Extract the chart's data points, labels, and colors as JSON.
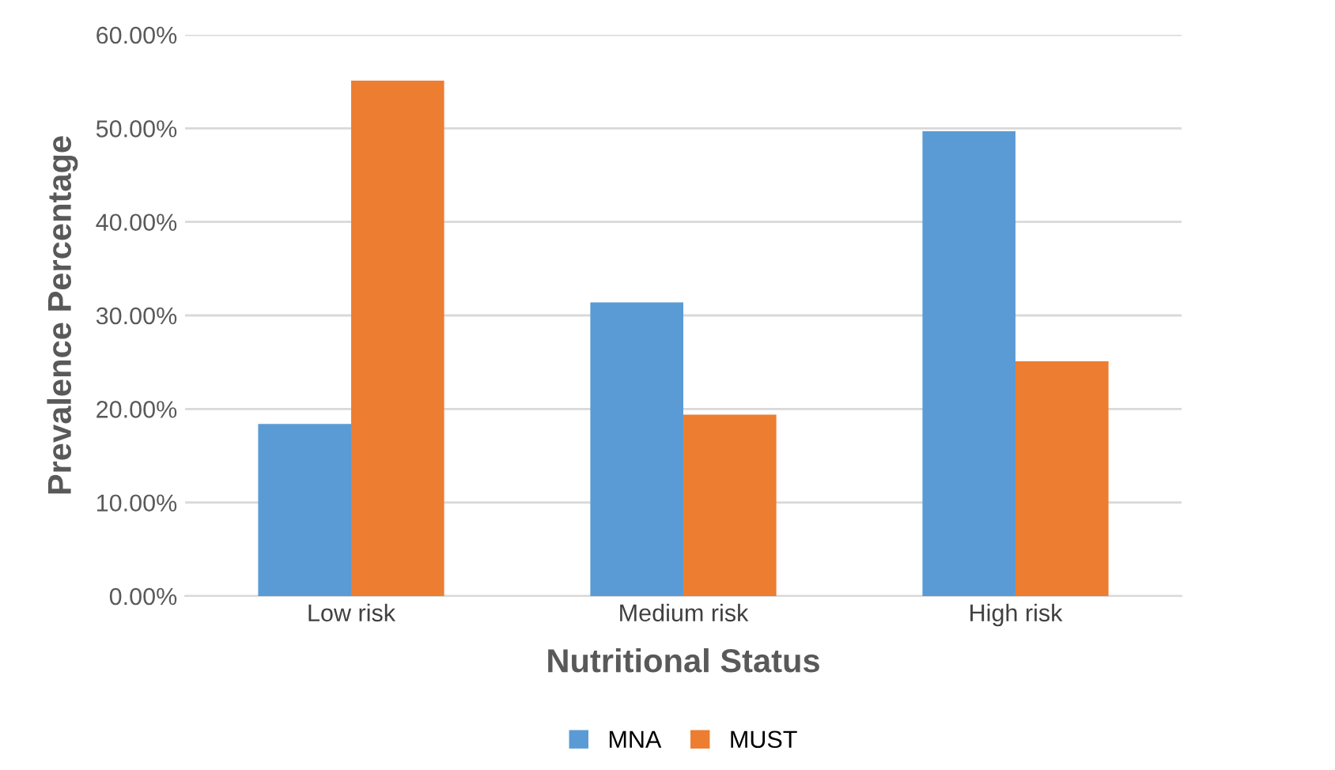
{
  "chart_data": {
    "type": "bar",
    "xlabel": "Nutritional Status",
    "ylabel": "Prevalence Percentage",
    "categories": [
      "Low risk",
      "Medium risk",
      "High risk"
    ],
    "series": [
      {
        "name": "MNA",
        "color": "#5b9bd5",
        "values": [
          18.4,
          31.4,
          49.7
        ]
      },
      {
        "name": "MUST",
        "color": "#ed7d31",
        "values": [
          55.1,
          19.4,
          25.1
        ]
      }
    ],
    "ylim": [
      0,
      60
    ],
    "yticks": [
      {
        "value": 0,
        "label": "0.00%"
      },
      {
        "value": 10,
        "label": "10.00%"
      },
      {
        "value": 20,
        "label": "20.00%"
      },
      {
        "value": 30,
        "label": "30.00%"
      },
      {
        "value": 40,
        "label": "40.00%"
      },
      {
        "value": 50,
        "label": "50.00%"
      },
      {
        "value": 60,
        "label": "60.00%"
      }
    ],
    "grid": "y",
    "legend": "bottom"
  }
}
